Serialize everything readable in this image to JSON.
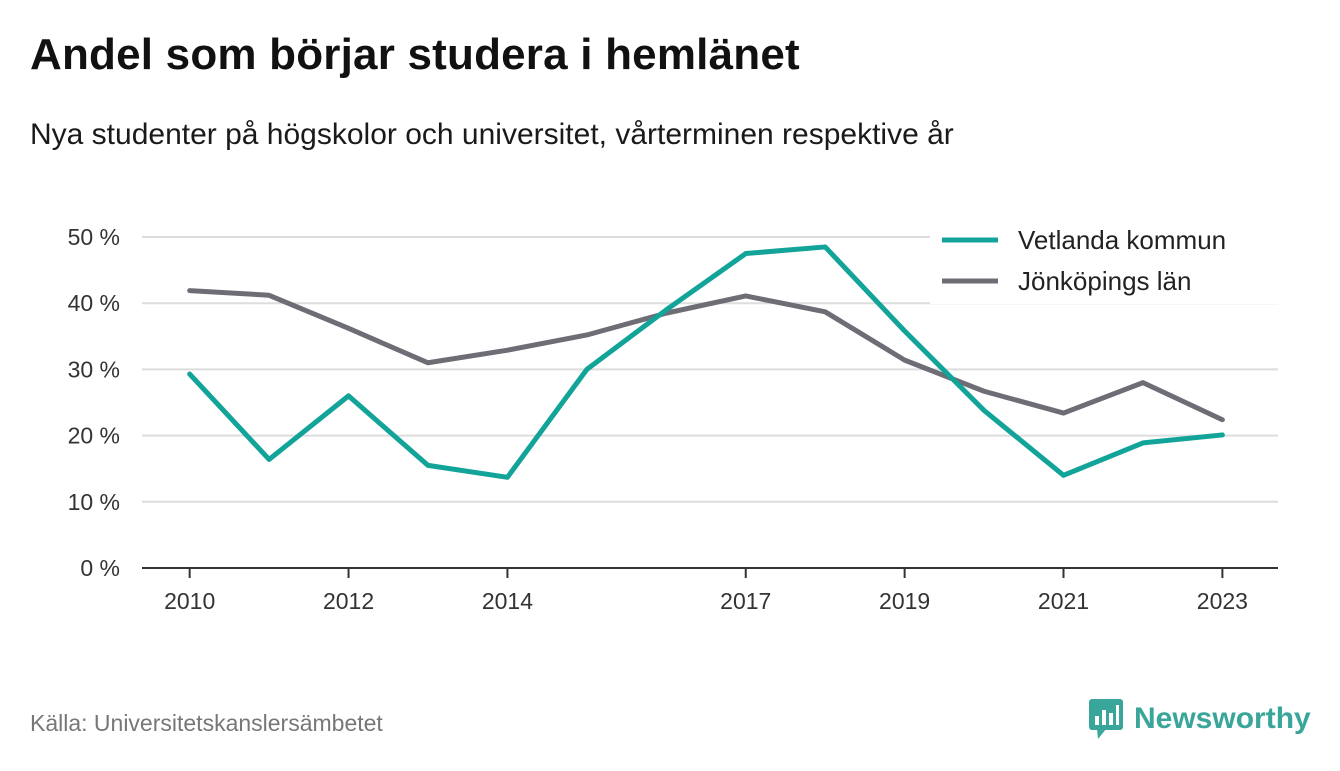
{
  "header": {
    "title": "Andel som börjar studera i hemlänet",
    "subtitle": "Nya studenter på högskolor och universitet, vårterminen respektive år"
  },
  "footer": {
    "source": "Källa: Universitetskanslersämbetet",
    "brand": "Newsworthy",
    "brand_icon": "bar-chart-speech-bubble-icon"
  },
  "colors": {
    "vetlanda": "#12a399",
    "jonkoping": "#6e6d76",
    "grid": "#dddddd",
    "axis": "#333333",
    "brand": "#3aa59a"
  },
  "chart_data": {
    "type": "line",
    "title": "Andel som börjar studera i hemlänet",
    "subtitle": "Nya studenter på högskolor och universitet, vårterminen respektive år",
    "xlabel": "",
    "ylabel": "",
    "x": [
      2010,
      2011,
      2012,
      2013,
      2014,
      2015,
      2016,
      2017,
      2018,
      2019,
      2020,
      2021,
      2022,
      2023
    ],
    "x_tick_labels": [
      "2010",
      "2012",
      "2014",
      "2017",
      "2019",
      "2021",
      "2023"
    ],
    "x_tick_values": [
      2010,
      2012,
      2014,
      2017,
      2019,
      2021,
      2023
    ],
    "xlim": [
      2009.4,
      2023.7
    ],
    "ylim": [
      0,
      50
    ],
    "y_ticks": [
      0,
      10,
      20,
      30,
      40,
      50
    ],
    "y_tick_labels": [
      "0 %",
      "10 %",
      "20 %",
      "30 %",
      "40 %",
      "50 %"
    ],
    "grid": "horizontal",
    "legend_position": "top-right",
    "series": [
      {
        "name": "Vetlanda kommun",
        "color": "#12a399",
        "values": [
          29.3,
          16.4,
          26.0,
          15.5,
          13.7,
          30.0,
          39.0,
          47.5,
          48.5,
          35.8,
          23.8,
          14.0,
          18.9,
          20.1
        ]
      },
      {
        "name": "Jönköpings län",
        "color": "#6e6d76",
        "values": [
          41.9,
          41.2,
          36.2,
          31.0,
          32.9,
          35.2,
          38.5,
          41.1,
          38.7,
          31.4,
          26.7,
          23.4,
          28.0,
          22.4
        ]
      }
    ]
  }
}
